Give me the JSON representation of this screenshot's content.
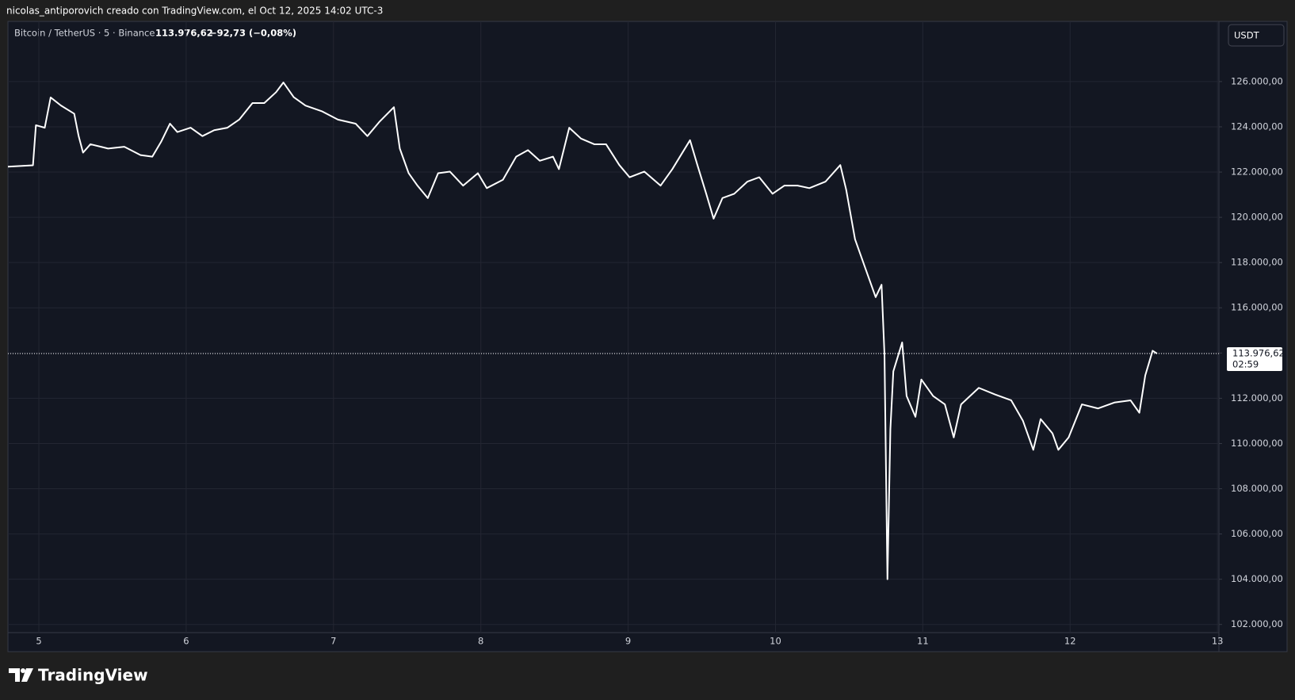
{
  "header": {
    "author_line": "nicolas_antiporovich creado con TradingView.com, el Oct 12, 2025 14:02 UTC-3"
  },
  "chart_data": {
    "type": "line",
    "symbol": "Bitcoin / TetherUS · 5 · Binance",
    "price": "113.976,62",
    "change": "−92,73 (−0,08%)",
    "currency": "USDT",
    "last_price": {
      "value": 113976.62,
      "label": "113.976,62"
    },
    "countdown": "02:59",
    "color": "#ffffff",
    "grid": true,
    "xlim": [
      4.79,
      13.01
    ],
    "xticks": [
      5,
      6,
      7,
      8,
      9,
      10,
      11,
      12,
      13
    ],
    "ylim": [
      101640,
      128660
    ],
    "yticks": [
      {
        "value": 102000,
        "label": "102.000,00"
      },
      {
        "value": 104000,
        "label": "104.000,00"
      },
      {
        "value": 106000,
        "label": "106.000,00"
      },
      {
        "value": 108000,
        "label": "108.000,00"
      },
      {
        "value": 110000,
        "label": "110.000,00"
      },
      {
        "value": 112000,
        "label": "112.000,00"
      },
      {
        "value": 114000,
        "label": "114.000,00"
      },
      {
        "value": 116000,
        "label": "116.000,00"
      },
      {
        "value": 118000,
        "label": "118.000,00"
      },
      {
        "value": 120000,
        "label": "120.000,00"
      },
      {
        "value": 122000,
        "label": "122.000,00"
      },
      {
        "value": 124000,
        "label": "124.000,00"
      },
      {
        "value": 126000,
        "label": "126.000,00"
      }
    ],
    "x": [
      4.79,
      4.96,
      4.98,
      5.04,
      5.08,
      5.15,
      5.24,
      5.27,
      5.3,
      5.35,
      5.47,
      5.58,
      5.69,
      5.77,
      5.83,
      5.89,
      5.94,
      6.03,
      6.11,
      6.19,
      6.28,
      6.36,
      6.45,
      6.53,
      6.61,
      6.66,
      6.73,
      6.81,
      6.92,
      7.03,
      7.15,
      7.23,
      7.31,
      7.41,
      7.45,
      7.51,
      7.57,
      7.64,
      7.71,
      7.79,
      7.88,
      7.98,
      8.04,
      8.15,
      8.24,
      8.32,
      8.4,
      8.49,
      8.53,
      8.6,
      8.68,
      8.77,
      8.85,
      8.94,
      9.01,
      9.11,
      9.22,
      9.3,
      9.42,
      9.47,
      9.53,
      9.58,
      9.64,
      9.72,
      9.81,
      9.89,
      9.98,
      10.06,
      10.15,
      10.23,
      10.34,
      10.44,
      10.48,
      10.54,
      10.6,
      10.68,
      10.72,
      10.74,
      10.76,
      10.78,
      10.8,
      10.86,
      10.89,
      10.95,
      10.99,
      11.07,
      11.15,
      11.21,
      11.26,
      11.38,
      11.49,
      11.6,
      11.68,
      11.75,
      11.8,
      11.88,
      11.92,
      11.99,
      12.08,
      12.19,
      12.3,
      12.41,
      12.47,
      12.51,
      12.56,
      12.59
    ],
    "series": [
      {
        "name": "BTCUSDT",
        "color": "#ffffff",
        "values": [
          122240,
          122300,
          124070,
          123960,
          125300,
          124940,
          124580,
          123590,
          122860,
          123230,
          123040,
          123120,
          122750,
          122680,
          123340,
          124140,
          123770,
          123960,
          123590,
          123850,
          123960,
          124320,
          125050,
          125050,
          125530,
          125960,
          125310,
          124940,
          124690,
          124320,
          124140,
          123590,
          124210,
          124870,
          123040,
          121950,
          121400,
          120850,
          121950,
          122020,
          121400,
          121950,
          121290,
          121660,
          122680,
          122970,
          122500,
          122680,
          122130,
          123960,
          123480,
          123230,
          123230,
          122310,
          121770,
          122020,
          121400,
          122130,
          123410,
          122310,
          121040,
          119940,
          120850,
          121040,
          121580,
          121770,
          121040,
          121400,
          121400,
          121290,
          121580,
          122310,
          121220,
          119030,
          117930,
          116470,
          117020,
          113920,
          104000,
          110640,
          113190,
          114470,
          112100,
          111180,
          112830,
          112100,
          111730,
          110270,
          111730,
          112460,
          112170,
          111910,
          111000,
          109720,
          111080,
          110450,
          109720,
          110270,
          111730,
          111550,
          111810,
          111910,
          111360,
          113010,
          114100,
          113976.62
        ]
      }
    ]
  },
  "footer": {
    "brand": "TradingView"
  }
}
